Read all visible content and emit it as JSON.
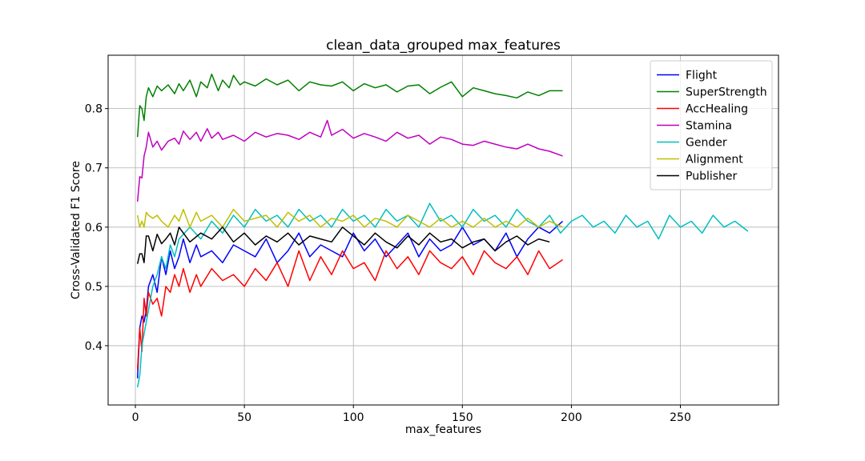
{
  "chart_data": {
    "type": "line",
    "title": "clean_data_grouped max_features",
    "xlabel": "max_features",
    "ylabel": "Cross-Validated F1 Score",
    "xlim": [
      -12.5,
      295
    ],
    "ylim": [
      0.3,
      0.89
    ],
    "xticks": [
      0,
      50,
      100,
      150,
      200,
      250
    ],
    "yticks": [
      0.4,
      0.5,
      0.6,
      0.7,
      0.8
    ],
    "grid": true,
    "legend_position": "top-right",
    "series": [
      {
        "name": "Flight",
        "color": "#0000ff",
        "x": [
          1,
          2,
          3,
          4,
          5,
          6,
          8,
          10,
          12,
          14,
          16,
          18,
          20,
          22,
          25,
          28,
          30,
          35,
          40,
          45,
          50,
          55,
          60,
          65,
          70,
          75,
          80,
          85,
          90,
          95,
          100,
          105,
          110,
          115,
          120,
          125,
          130,
          135,
          140,
          145,
          150,
          155,
          160,
          165,
          170,
          175,
          180,
          185,
          190,
          196
        ],
        "y": [
          0.345,
          0.43,
          0.45,
          0.44,
          0.46,
          0.5,
          0.52,
          0.49,
          0.55,
          0.52,
          0.56,
          0.53,
          0.55,
          0.58,
          0.54,
          0.57,
          0.55,
          0.56,
          0.54,
          0.57,
          0.56,
          0.55,
          0.58,
          0.54,
          0.56,
          0.59,
          0.55,
          0.57,
          0.56,
          0.55,
          0.59,
          0.56,
          0.58,
          0.55,
          0.57,
          0.59,
          0.55,
          0.58,
          0.56,
          0.57,
          0.6,
          0.57,
          0.58,
          0.56,
          0.59,
          0.55,
          0.58,
          0.6,
          0.59,
          0.61
        ]
      },
      {
        "name": "SuperStrength",
        "color": "#008000",
        "x": [
          1,
          2,
          3,
          4,
          5,
          6,
          8,
          10,
          12,
          15,
          18,
          20,
          22,
          25,
          28,
          30,
          33,
          35,
          38,
          40,
          43,
          45,
          48,
          50,
          55,
          60,
          65,
          70,
          75,
          80,
          85,
          90,
          95,
          100,
          105,
          110,
          115,
          120,
          125,
          130,
          135,
          140,
          145,
          150,
          155,
          160,
          165,
          170,
          175,
          180,
          185,
          190,
          196
        ],
        "y": [
          0.752,
          0.805,
          0.8,
          0.78,
          0.82,
          0.835,
          0.82,
          0.838,
          0.83,
          0.84,
          0.825,
          0.842,
          0.83,
          0.848,
          0.82,
          0.845,
          0.835,
          0.858,
          0.83,
          0.848,
          0.835,
          0.856,
          0.84,
          0.845,
          0.838,
          0.85,
          0.84,
          0.848,
          0.83,
          0.845,
          0.84,
          0.838,
          0.845,
          0.83,
          0.842,
          0.835,
          0.84,
          0.828,
          0.838,
          0.84,
          0.825,
          0.836,
          0.845,
          0.82,
          0.835,
          0.83,
          0.825,
          0.822,
          0.818,
          0.828,
          0.822,
          0.83,
          0.83
        ]
      },
      {
        "name": "AccHealing",
        "color": "#ff0000",
        "x": [
          1,
          2,
          3,
          4,
          5,
          6,
          8,
          10,
          12,
          14,
          16,
          18,
          20,
          22,
          25,
          28,
          30,
          35,
          40,
          45,
          50,
          55,
          60,
          65,
          70,
          75,
          80,
          85,
          90,
          95,
          100,
          105,
          110,
          115,
          120,
          125,
          130,
          135,
          140,
          145,
          150,
          155,
          160,
          165,
          170,
          175,
          180,
          185,
          190,
          196
        ],
        "y": [
          0.36,
          0.43,
          0.39,
          0.48,
          0.45,
          0.49,
          0.47,
          0.48,
          0.45,
          0.5,
          0.49,
          0.52,
          0.5,
          0.53,
          0.49,
          0.52,
          0.5,
          0.53,
          0.51,
          0.52,
          0.5,
          0.53,
          0.51,
          0.54,
          0.5,
          0.56,
          0.51,
          0.55,
          0.52,
          0.56,
          0.53,
          0.54,
          0.51,
          0.56,
          0.53,
          0.55,
          0.52,
          0.56,
          0.54,
          0.53,
          0.55,
          0.52,
          0.56,
          0.54,
          0.53,
          0.55,
          0.52,
          0.56,
          0.53,
          0.545
        ]
      },
      {
        "name": "Stamina",
        "color": "#bf00bf",
        "x": [
          1,
          2,
          3,
          4,
          5,
          6,
          8,
          10,
          12,
          15,
          18,
          20,
          22,
          25,
          28,
          30,
          33,
          35,
          38,
          40,
          45,
          50,
          55,
          60,
          65,
          70,
          75,
          80,
          85,
          88,
          90,
          95,
          100,
          105,
          110,
          115,
          120,
          125,
          130,
          135,
          140,
          145,
          150,
          155,
          160,
          165,
          170,
          175,
          180,
          185,
          190,
          196
        ],
        "y": [
          0.643,
          0.685,
          0.683,
          0.72,
          0.735,
          0.76,
          0.735,
          0.745,
          0.73,
          0.745,
          0.75,
          0.74,
          0.762,
          0.748,
          0.76,
          0.745,
          0.766,
          0.75,
          0.76,
          0.748,
          0.755,
          0.745,
          0.76,
          0.752,
          0.758,
          0.755,
          0.748,
          0.76,
          0.752,
          0.78,
          0.755,
          0.765,
          0.75,
          0.758,
          0.752,
          0.745,
          0.76,
          0.75,
          0.755,
          0.74,
          0.752,
          0.748,
          0.74,
          0.738,
          0.745,
          0.74,
          0.735,
          0.732,
          0.74,
          0.732,
          0.728,
          0.72
        ]
      },
      {
        "name": "Gender",
        "color": "#00bfbf",
        "x": [
          1,
          2,
          3,
          4,
          5,
          6,
          8,
          10,
          12,
          14,
          16,
          18,
          20,
          25,
          30,
          35,
          40,
          45,
          50,
          55,
          60,
          65,
          70,
          75,
          80,
          85,
          90,
          95,
          100,
          105,
          110,
          115,
          120,
          125,
          130,
          135,
          140,
          145,
          150,
          155,
          160,
          165,
          170,
          175,
          180,
          185,
          190,
          195,
          200,
          205,
          210,
          215,
          220,
          225,
          230,
          235,
          240,
          245,
          250,
          255,
          260,
          265,
          270,
          275,
          281
        ],
        "y": [
          0.33,
          0.35,
          0.4,
          0.42,
          0.44,
          0.46,
          0.5,
          0.52,
          0.55,
          0.53,
          0.57,
          0.55,
          0.58,
          0.6,
          0.58,
          0.61,
          0.59,
          0.62,
          0.6,
          0.63,
          0.61,
          0.62,
          0.6,
          0.63,
          0.61,
          0.62,
          0.6,
          0.63,
          0.61,
          0.62,
          0.6,
          0.63,
          0.61,
          0.62,
          0.6,
          0.64,
          0.61,
          0.62,
          0.6,
          0.63,
          0.61,
          0.62,
          0.6,
          0.63,
          0.61,
          0.6,
          0.62,
          0.59,
          0.61,
          0.62,
          0.6,
          0.61,
          0.59,
          0.62,
          0.6,
          0.61,
          0.58,
          0.62,
          0.6,
          0.61,
          0.59,
          0.62,
          0.6,
          0.61,
          0.593
        ]
      },
      {
        "name": "Alignment",
        "color": "#bfbf00",
        "x": [
          1,
          2,
          3,
          4,
          5,
          6,
          8,
          10,
          12,
          15,
          18,
          20,
          22,
          25,
          28,
          30,
          35,
          40,
          45,
          50,
          55,
          60,
          65,
          70,
          75,
          80,
          85,
          90,
          95,
          100,
          105,
          110,
          115,
          120,
          125,
          130,
          135,
          140,
          145,
          150,
          155,
          160,
          165,
          170,
          175,
          180,
          185,
          190,
          196
        ],
        "y": [
          0.62,
          0.6,
          0.61,
          0.6,
          0.625,
          0.62,
          0.615,
          0.62,
          0.61,
          0.6,
          0.62,
          0.61,
          0.63,
          0.6,
          0.625,
          0.61,
          0.62,
          0.6,
          0.63,
          0.61,
          0.615,
          0.62,
          0.6,
          0.625,
          0.61,
          0.62,
          0.6,
          0.615,
          0.61,
          0.62,
          0.6,
          0.615,
          0.61,
          0.6,
          0.62,
          0.61,
          0.6,
          0.615,
          0.6,
          0.61,
          0.6,
          0.615,
          0.6,
          0.61,
          0.6,
          0.615,
          0.6,
          0.61,
          0.6
        ]
      },
      {
        "name": "Publisher",
        "color": "#000000",
        "x": [
          1,
          2,
          3,
          4,
          5,
          6,
          8,
          10,
          12,
          14,
          16,
          18,
          20,
          25,
          30,
          35,
          40,
          45,
          50,
          55,
          60,
          65,
          70,
          75,
          80,
          85,
          90,
          95,
          100,
          105,
          110,
          115,
          120,
          125,
          130,
          135,
          140,
          145,
          150,
          155,
          160,
          165,
          170,
          175,
          180,
          185,
          190
        ],
        "y": [
          0.538,
          0.555,
          0.555,
          0.54,
          0.585,
          0.585,
          0.56,
          0.588,
          0.572,
          0.58,
          0.59,
          0.57,
          0.6,
          0.575,
          0.59,
          0.58,
          0.6,
          0.575,
          0.59,
          0.57,
          0.585,
          0.575,
          0.59,
          0.57,
          0.585,
          0.58,
          0.575,
          0.6,
          0.585,
          0.57,
          0.59,
          0.575,
          0.565,
          0.585,
          0.57,
          0.59,
          0.575,
          0.58,
          0.565,
          0.575,
          0.58,
          0.56,
          0.575,
          0.585,
          0.57,
          0.58,
          0.575
        ]
      }
    ]
  }
}
